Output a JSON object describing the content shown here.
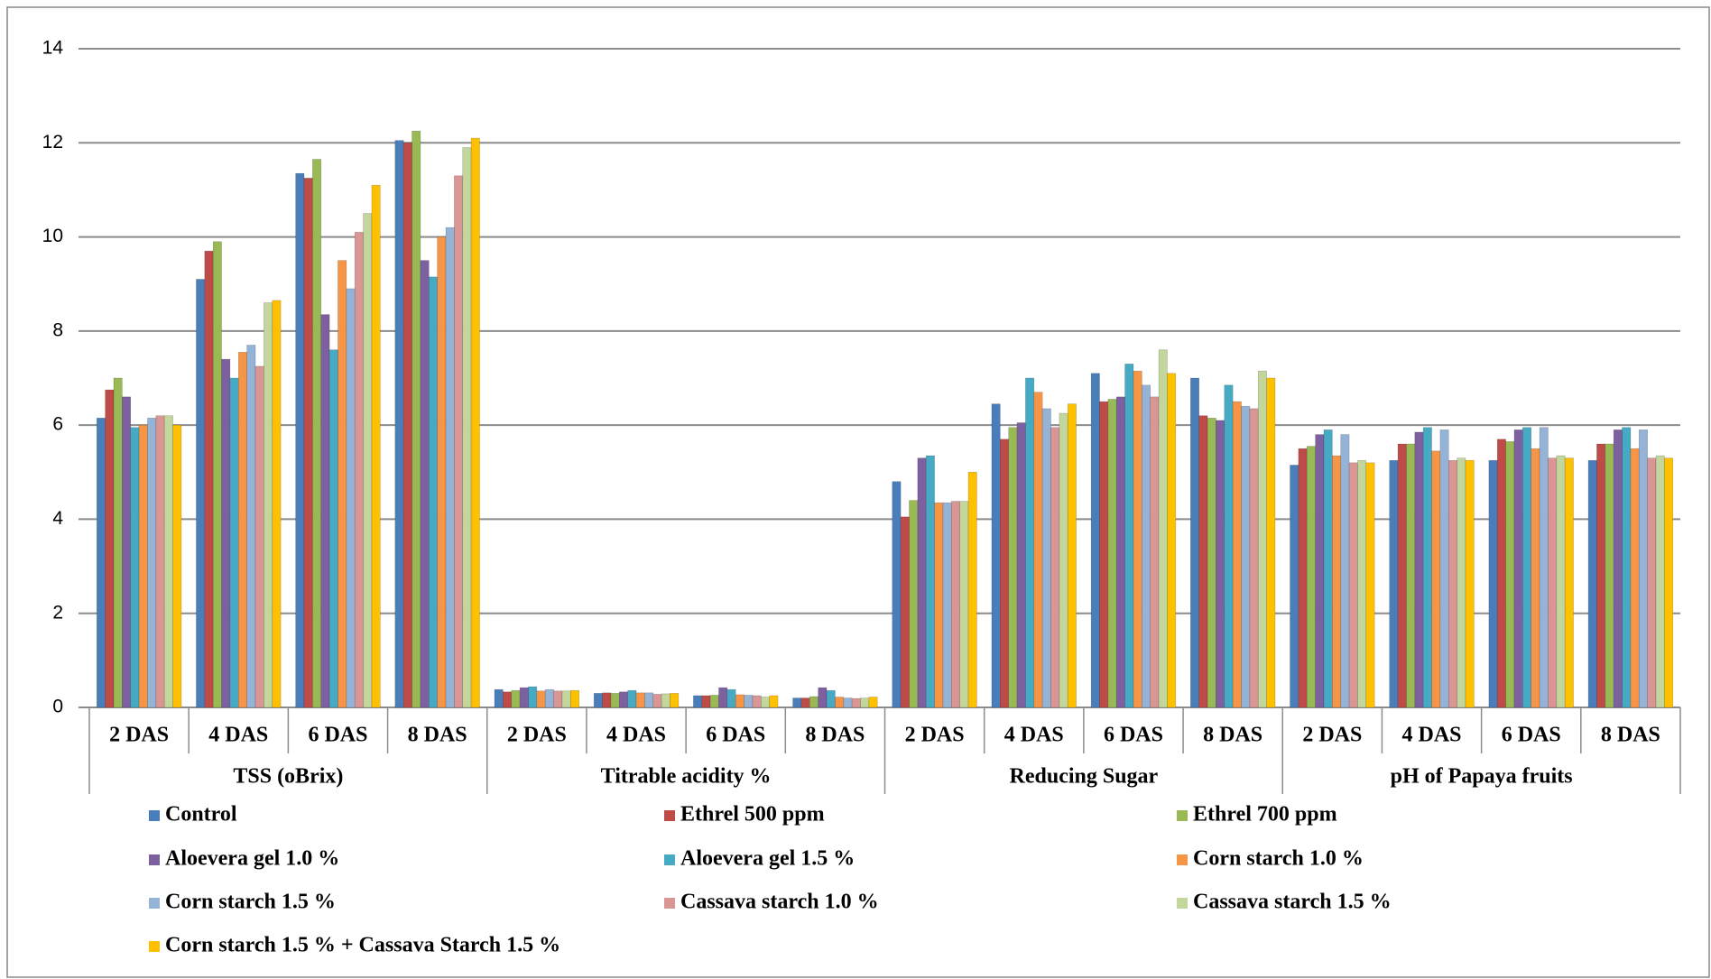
{
  "chart_data": {
    "type": "bar",
    "categories": [
      "2 DAS",
      "4 DAS",
      "6 DAS",
      "8 DAS",
      "2 DAS",
      "4 DAS",
      "6 DAS",
      "8 DAS",
      "2 DAS",
      "4 DAS",
      "6 DAS",
      "8 DAS",
      "2 DAS",
      "4 DAS",
      "6 DAS",
      "8 DAS"
    ],
    "groups": [
      "TSS (oBrix)",
      "Titrable acidity %",
      "Reducing Sugar",
      "pH of Papaya fruits"
    ],
    "ylim": [
      0,
      14
    ],
    "yticks": [
      0,
      2,
      4,
      6,
      8,
      10,
      12,
      14
    ],
    "grid": true,
    "series": [
      {
        "name": "Control",
        "color": "#4a7ebb",
        "values": [
          6.15,
          9.1,
          11.35,
          12.05,
          0.38,
          0.3,
          0.25,
          0.2,
          4.8,
          6.45,
          7.1,
          7.0,
          5.15,
          5.25,
          5.25,
          5.25
        ]
      },
      {
        "name": "Ethrel 500 ppm",
        "color": "#be4b48",
        "values": [
          6.75,
          9.7,
          11.25,
          12.0,
          0.33,
          0.31,
          0.25,
          0.2,
          4.05,
          5.7,
          6.5,
          6.2,
          5.5,
          5.6,
          5.7,
          5.6
        ]
      },
      {
        "name": "Ethrel 700 ppm",
        "color": "#98b954",
        "values": [
          7.0,
          9.9,
          11.65,
          12.25,
          0.36,
          0.3,
          0.26,
          0.23,
          4.4,
          5.95,
          6.55,
          6.15,
          5.55,
          5.6,
          5.65,
          5.6
        ]
      },
      {
        "name": "Aloevera gel 1.0 %",
        "color": "#7d60a0",
        "values": [
          6.6,
          7.4,
          8.35,
          9.5,
          0.42,
          0.33,
          0.42,
          0.42,
          5.3,
          6.05,
          6.6,
          6.1,
          5.8,
          5.85,
          5.9,
          5.9
        ]
      },
      {
        "name": "Aloevera gel 1.5 %",
        "color": "#46aac5",
        "values": [
          5.95,
          7.0,
          7.6,
          9.15,
          0.44,
          0.36,
          0.38,
          0.36,
          5.35,
          7.0,
          7.3,
          6.85,
          5.9,
          5.95,
          5.95,
          5.95
        ]
      },
      {
        "name": "Corn starch 1.0 %",
        "color": "#f69546",
        "values": [
          6.0,
          7.55,
          9.5,
          10.0,
          0.35,
          0.31,
          0.27,
          0.22,
          4.35,
          6.7,
          7.15,
          6.5,
          5.35,
          5.45,
          5.5,
          5.5
        ]
      },
      {
        "name": "Corn starch 1.5 %",
        "color": "#95b3d7",
        "values": [
          6.15,
          7.7,
          8.9,
          10.2,
          0.38,
          0.31,
          0.26,
          0.2,
          4.35,
          6.35,
          6.85,
          6.4,
          5.8,
          5.9,
          5.95,
          5.9
        ]
      },
      {
        "name": "Cassava starch 1.0 %",
        "color": "#d99694",
        "values": [
          6.2,
          7.25,
          10.1,
          11.3,
          0.35,
          0.28,
          0.25,
          0.19,
          4.38,
          5.95,
          6.6,
          6.35,
          5.2,
          5.25,
          5.3,
          5.3
        ]
      },
      {
        "name": "Cassava starch 1.5 %",
        "color": "#c3d69b",
        "values": [
          6.2,
          8.6,
          10.5,
          11.9,
          0.35,
          0.29,
          0.22,
          0.2,
          4.38,
          6.25,
          7.6,
          7.15,
          5.25,
          5.3,
          5.35,
          5.35
        ]
      },
      {
        "name": "Corn starch 1.5 % + Cassava Starch 1.5 %",
        "color": "#ffc000",
        "values": [
          6.0,
          8.65,
          11.1,
          12.1,
          0.36,
          0.3,
          0.25,
          0.22,
          5.0,
          6.45,
          7.1,
          7.0,
          5.2,
          5.25,
          5.3,
          5.3
        ]
      }
    ]
  }
}
